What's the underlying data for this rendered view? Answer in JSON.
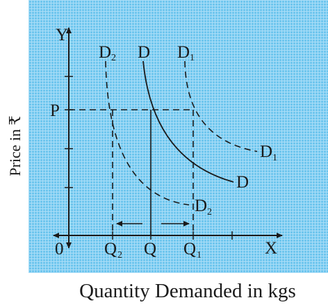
{
  "diagram": {
    "y_axis_letter": "Y",
    "x_axis_letter": "X",
    "origin_label": "0",
    "price_label": "P",
    "y_axis_title": "Price in ₹",
    "x_axis_title": "Quantity Demanded in kgs",
    "curves": {
      "d_top": "D",
      "d_end": "D",
      "d1_top": "D",
      "d1_top_sub": "1",
      "d1_end": "D",
      "d1_end_sub": "1",
      "d2_top": "D",
      "d2_top_sub": "2",
      "d2_end": "D",
      "d2_end_sub": "2"
    },
    "quantities": {
      "q": "Q",
      "q1": "Q",
      "q1_sub": "1",
      "q2": "Q",
      "q2_sub": "2"
    },
    "colors": {
      "grid_background": "#6fc6ee",
      "grid_line": "#a9ddf7",
      "ink": "#1a1a1a"
    }
  }
}
